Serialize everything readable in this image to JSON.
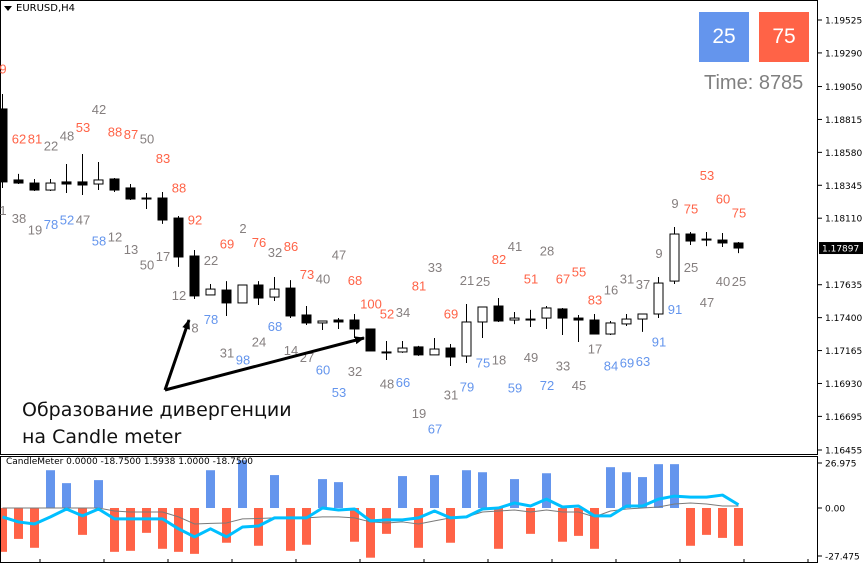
{
  "header": {
    "symbol": "EURUSD,H4"
  },
  "widget": {
    "blue_value": "25",
    "red_value": "75",
    "timer": "Time: 8785",
    "blue_color": "#6495ed",
    "red_color": "#ff6347"
  },
  "annotation": {
    "line1": "Образование дивергенции",
    "line2": "на Candle meter"
  },
  "indicator": {
    "title": "CandleMeter 0.0000 -18.7500 1.5938 1.0000 -18.7500"
  },
  "chart_data": [
    {
      "type": "candlestick",
      "title": "EURUSD,H4",
      "ylim": [
        1.16455,
        1.19525
      ],
      "y_ticks": [
        "1.19525",
        "1.19290",
        "1.19050",
        "1.18815",
        "1.18580",
        "1.18345",
        "1.18110",
        "1.17635",
        "1.17400",
        "1.17165",
        "1.16930",
        "1.16695",
        "1.16455"
      ],
      "y_tick_values": [
        1.19525,
        1.1929,
        1.1905,
        1.18815,
        1.1858,
        1.18345,
        1.1811,
        1.17635,
        1.174,
        1.17165,
        1.1693,
        1.16695,
        1.16455
      ],
      "current_price": "1.17897",
      "current_price_value": 1.17897,
      "ohlc_order": [
        "open",
        "high",
        "low",
        "close"
      ],
      "candles": [
        [
          1.1889,
          1.18997,
          1.18326,
          1.18369
        ],
        [
          1.18383,
          1.18426,
          1.18354,
          1.18361
        ],
        [
          1.18361,
          1.1839,
          1.18304,
          1.18311
        ],
        [
          1.18311,
          1.1839,
          1.18304,
          1.18361
        ],
        [
          1.18369,
          1.18497,
          1.1829,
          1.18354
        ],
        [
          1.18369,
          1.18568,
          1.18276,
          1.18347
        ],
        [
          1.18354,
          1.18511,
          1.18311,
          1.18383
        ],
        [
          1.1839,
          1.18397,
          1.18297,
          1.18311
        ],
        [
          1.18326,
          1.18354,
          1.1824,
          1.18247
        ],
        [
          1.18254,
          1.1829,
          1.18176,
          1.18247
        ],
        [
          1.18254,
          1.18297,
          1.18069,
          1.18097
        ],
        [
          1.18111,
          1.18126,
          1.17762,
          1.17833
        ],
        [
          1.1784,
          1.17883,
          1.17533,
          1.17555
        ],
        [
          1.17562,
          1.1764,
          1.17562,
          1.17604
        ],
        [
          1.17597,
          1.17661,
          1.17412,
          1.17505
        ],
        [
          1.17505,
          1.17633,
          1.17505,
          1.17633
        ],
        [
          1.17633,
          1.17661,
          1.1749,
          1.1754
        ],
        [
          1.17547,
          1.1769,
          1.17519,
          1.17604
        ],
        [
          1.17611,
          1.17668,
          1.17397,
          1.17412
        ],
        [
          1.17419,
          1.17483,
          1.17347,
          1.17362
        ],
        [
          1.17362,
          1.17376,
          1.17312,
          1.17376
        ],
        [
          1.17383,
          1.17397,
          1.17319,
          1.17369
        ],
        [
          1.17383,
          1.17426,
          1.17255,
          1.17319
        ],
        [
          1.17319,
          1.17319,
          1.17162,
          1.17162
        ],
        [
          1.17155,
          1.17233,
          1.17098,
          1.17148
        ],
        [
          1.17155,
          1.17233,
          1.17148,
          1.17183
        ],
        [
          1.17191,
          1.17198,
          1.17127,
          1.17134
        ],
        [
          1.17134,
          1.17255,
          1.17134,
          1.17176
        ],
        [
          1.17183,
          1.17212,
          1.17055,
          1.17119
        ],
        [
          1.17126,
          1.17497,
          1.17076,
          1.17369
        ],
        [
          1.17369,
          1.17476,
          1.17255,
          1.17476
        ],
        [
          1.17483,
          1.1754,
          1.17369,
          1.17376
        ],
        [
          1.17383,
          1.1744,
          1.17354,
          1.17397
        ],
        [
          1.17383,
          1.17455,
          1.17333,
          1.1739
        ],
        [
          1.17397,
          1.17483,
          1.17319,
          1.17469
        ],
        [
          1.17462,
          1.17469,
          1.17276,
          1.17397
        ],
        [
          1.17397,
          1.17419,
          1.17226,
          1.17383
        ],
        [
          1.17383,
          1.17426,
          1.17283,
          1.17283
        ],
        [
          1.17283,
          1.17376,
          1.17276,
          1.17362
        ],
        [
          1.17355,
          1.17426,
          1.1734,
          1.1739
        ],
        [
          1.1739,
          1.17426,
          1.17298,
          1.17426
        ],
        [
          1.17426,
          1.1769,
          1.17397,
          1.17647
        ],
        [
          1.17661,
          1.18047,
          1.1764,
          1.17997
        ],
        [
          1.17997,
          1.18011,
          1.17919,
          1.17947
        ],
        [
          1.17961,
          1.18011,
          1.17911,
          1.17954
        ],
        [
          1.17954,
          1.18004,
          1.17904,
          1.17933
        ],
        [
          1.17933,
          1.1794,
          1.17861,
          1.17897
        ]
      ],
      "label_colors": {
        "r": "#ff6347",
        "g": "#857f7f",
        "b": "#6495ed"
      },
      "labels": [
        {
          "i": 0,
          "t": "9",
          "c": "r",
          "p": 1.1918
        },
        {
          "i": 1,
          "t": "62",
          "c": "r",
          "p": 1.1868
        },
        {
          "i": 2,
          "t": "81",
          "c": "r",
          "p": 1.1868
        },
        {
          "i": 3,
          "t": "22",
          "c": "g",
          "p": 1.1863
        },
        {
          "i": 4,
          "t": "48",
          "c": "g",
          "p": 1.187
        },
        {
          "i": 5,
          "t": "53",
          "c": "r",
          "p": 1.1876
        },
        {
          "i": 6,
          "t": "42",
          "c": "g",
          "p": 1.1889
        },
        {
          "i": 7,
          "t": "88",
          "c": "r",
          "p": 1.1873
        },
        {
          "i": 8,
          "t": "87",
          "c": "r",
          "p": 1.1871
        },
        {
          "i": 9,
          "t": "50",
          "c": "g",
          "p": 1.1868
        },
        {
          "i": 10,
          "t": "83",
          "c": "r",
          "p": 1.1854
        },
        {
          "i": 11,
          "t": "88",
          "c": "r",
          "p": 1.1833
        },
        {
          "i": 12,
          "t": "92",
          "c": "r",
          "p": 1.181
        },
        {
          "i": 13,
          "t": "22",
          "c": "g",
          "p": 1.1781
        },
        {
          "i": 14,
          "t": "69",
          "c": "r",
          "p": 1.1793
        },
        {
          "i": 15,
          "t": "2",
          "c": "g",
          "p": 1.1804
        },
        {
          "i": 16,
          "t": "76",
          "c": "r",
          "p": 1.1794
        },
        {
          "i": 17,
          "t": "32",
          "c": "g",
          "p": 1.1787
        },
        {
          "i": 18,
          "t": "86",
          "c": "r",
          "p": 1.1791
        },
        {
          "i": 19,
          "t": "73",
          "c": "r",
          "p": 1.1771
        },
        {
          "i": 20,
          "t": "40",
          "c": "g",
          "p": 1.1768
        },
        {
          "i": 21,
          "t": "47",
          "c": "g",
          "p": 1.1785
        },
        {
          "i": 22,
          "t": "68",
          "c": "r",
          "p": 1.1767
        },
        {
          "i": 23,
          "t": "100",
          "c": "r",
          "p": 1.175
        },
        {
          "i": 24,
          "t": "52",
          "c": "r",
          "p": 1.1743
        },
        {
          "i": 25,
          "t": "34",
          "c": "g",
          "p": 1.1744
        },
        {
          "i": 26,
          "t": "81",
          "c": "r",
          "p": 1.1763
        },
        {
          "i": 27,
          "t": "33",
          "c": "g",
          "p": 1.1776
        },
        {
          "i": 28,
          "t": "69",
          "c": "r",
          "p": 1.1743
        },
        {
          "i": 29,
          "t": "21",
          "c": "g",
          "p": 1.1767
        },
        {
          "i": 30,
          "t": "25",
          "c": "g",
          "p": 1.1766
        },
        {
          "i": 31,
          "t": "82",
          "c": "r",
          "p": 1.1782
        },
        {
          "i": 32,
          "t": "41",
          "c": "g",
          "p": 1.1791
        },
        {
          "i": 33,
          "t": "51",
          "c": "r",
          "p": 1.1768
        },
        {
          "i": 34,
          "t": "28",
          "c": "g",
          "p": 1.1788
        },
        {
          "i": 35,
          "t": "67",
          "c": "r",
          "p": 1.1768
        },
        {
          "i": 36,
          "t": "55",
          "c": "r",
          "p": 1.1773
        },
        {
          "i": 37,
          "t": "83",
          "c": "r",
          "p": 1.1753
        },
        {
          "i": 38,
          "t": "16",
          "c": "g",
          "p": 1.176
        },
        {
          "i": 39,
          "t": "31",
          "c": "g",
          "p": 1.1768
        },
        {
          "i": 40,
          "t": "37",
          "c": "g",
          "p": 1.1764
        },
        {
          "i": 41,
          "t": "9",
          "c": "g",
          "p": 1.1786
        },
        {
          "i": 42,
          "t": "9",
          "c": "g",
          "p": 1.1822
        },
        {
          "i": 43,
          "t": "75",
          "c": "r",
          "p": 1.1818
        },
        {
          "i": 44,
          "t": "53",
          "c": "r",
          "p": 1.1842
        },
        {
          "i": 45,
          "t": "60",
          "c": "r",
          "p": 1.1825
        },
        {
          "i": 46,
          "t": "75",
          "c": "r",
          "p": 1.1815
        },
        {
          "i": 0,
          "t": "1",
          "c": "g",
          "p": 1.1817
        },
        {
          "i": 1,
          "t": "38",
          "c": "g",
          "p": 1.1811
        },
        {
          "i": 2,
          "t": "19",
          "c": "g",
          "p": 1.1803
        },
        {
          "i": 3,
          "t": "78",
          "c": "b",
          "p": 1.1807
        },
        {
          "i": 4,
          "t": "52",
          "c": "b",
          "p": 1.181
        },
        {
          "i": 5,
          "t": "47",
          "c": "g",
          "p": 1.181
        },
        {
          "i": 6,
          "t": "58",
          "c": "b",
          "p": 1.1795
        },
        {
          "i": 7,
          "t": "12",
          "c": "g",
          "p": 1.1798
        },
        {
          "i": 8,
          "t": "13",
          "c": "g",
          "p": 1.1789
        },
        {
          "i": 9,
          "t": "50",
          "c": "g",
          "p": 1.1778
        },
        {
          "i": 10,
          "t": "17",
          "c": "g",
          "p": 1.1784
        },
        {
          "i": 11,
          "t": "12",
          "c": "g",
          "p": 1.1756
        },
        {
          "i": 12,
          "t": "8",
          "c": "g",
          "p": 1.1733
        },
        {
          "i": 13,
          "t": "78",
          "c": "b",
          "p": 1.1739
        },
        {
          "i": 14,
          "t": "31",
          "c": "g",
          "p": 1.1715
        },
        {
          "i": 15,
          "t": "98",
          "c": "b",
          "p": 1.171
        },
        {
          "i": 16,
          "t": "24",
          "c": "g",
          "p": 1.1723
        },
        {
          "i": 17,
          "t": "68",
          "c": "b",
          "p": 1.1734
        },
        {
          "i": 18,
          "t": "14",
          "c": "g",
          "p": 1.1717
        },
        {
          "i": 19,
          "t": "27",
          "c": "g",
          "p": 1.1712
        },
        {
          "i": 20,
          "t": "60",
          "c": "b",
          "p": 1.1703
        },
        {
          "i": 21,
          "t": "53",
          "c": "b",
          "p": 1.1687
        },
        {
          "i": 22,
          "t": "32",
          "c": "g",
          "p": 1.1702
        },
        {
          "i": 24,
          "t": "48",
          "c": "g",
          "p": 1.1693
        },
        {
          "i": 25,
          "t": "66",
          "c": "b",
          "p": 1.1694
        },
        {
          "i": 26,
          "t": "19",
          "c": "g",
          "p": 1.1672
        },
        {
          "i": 27,
          "t": "67",
          "c": "b",
          "p": 1.1661
        },
        {
          "i": 28,
          "t": "31",
          "c": "g",
          "p": 1.1685
        },
        {
          "i": 29,
          "t": "79",
          "c": "b",
          "p": 1.1691
        },
        {
          "i": 30,
          "t": "75",
          "c": "b",
          "p": 1.1708
        },
        {
          "i": 31,
          "t": "18",
          "c": "g",
          "p": 1.171
        },
        {
          "i": 32,
          "t": "59",
          "c": "b",
          "p": 1.169
        },
        {
          "i": 33,
          "t": "49",
          "c": "g",
          "p": 1.1712
        },
        {
          "i": 34,
          "t": "72",
          "c": "b",
          "p": 1.1692
        },
        {
          "i": 35,
          "t": "33",
          "c": "g",
          "p": 1.1706
        },
        {
          "i": 36,
          "t": "45",
          "c": "g",
          "p": 1.1692
        },
        {
          "i": 37,
          "t": "17",
          "c": "g",
          "p": 1.1718
        },
        {
          "i": 38,
          "t": "84",
          "c": "b",
          "p": 1.1706
        },
        {
          "i": 39,
          "t": "69",
          "c": "b",
          "p": 1.1708
        },
        {
          "i": 40,
          "t": "63",
          "c": "b",
          "p": 1.1709
        },
        {
          "i": 41,
          "t": "91",
          "c": "b",
          "p": 1.1723
        },
        {
          "i": 42,
          "t": "91",
          "c": "b",
          "p": 1.1746
        },
        {
          "i": 43,
          "t": "25",
          "c": "g",
          "p": 1.1776
        },
        {
          "i": 44,
          "t": "47",
          "c": "g",
          "p": 1.1751
        },
        {
          "i": 45,
          "t": "40",
          "c": "g",
          "p": 1.1766
        },
        {
          "i": 46,
          "t": "25",
          "c": "g",
          "p": 1.1766
        }
      ]
    },
    {
      "type": "bar+line",
      "title": "CandleMeter",
      "ylim": [
        -27.475,
        26.975
      ],
      "y_ticks": [
        "26.975",
        "0.00",
        "-27.475"
      ],
      "y_tick_values": [
        26.975,
        0,
        -27.475
      ],
      "histogram_colors": {
        "up": "#6495ed",
        "down": "#ff6347"
      },
      "histogram": [
        -21.7,
        -15.3,
        -19.7,
        18.7,
        12.3,
        -13.3,
        13.8,
        -21.7,
        -21.2,
        -12.3,
        -20.2,
        -21.7,
        -22.7,
        18.7,
        -17.2,
        23.6,
        -18.7,
        16.3,
        -21.2,
        -18.2,
        14.3,
        12.8,
        -16.7,
        -24.6,
        -12.8,
        15.8,
        -19.7,
        16.3,
        -17.2,
        18.7,
        17.7,
        -20.2,
        14.3,
        -12.8,
        17.2,
        -16.7,
        -13.8,
        -20.2,
        20.2,
        17.7,
        15.3,
        21.7,
        21.7,
        -18.7,
        -13.3,
        -14.8,
        -18.75
      ],
      "series": [
        {
          "name": "signal",
          "color": "#00bfff",
          "values": [
            -4.4,
            -6.9,
            -7.9,
            -4.4,
            -0.5,
            -3.9,
            -0.5,
            -5.4,
            -5.4,
            -5.4,
            -5.4,
            -10.3,
            -14.3,
            -10.3,
            -14.3,
            -9.4,
            -8.9,
            -4.9,
            -4.9,
            -4.9,
            0,
            -1.0,
            -0.5,
            -6.4,
            -5.9,
            -5.9,
            -4.9,
            -1.5,
            -4.9,
            -4.4,
            -0.5,
            0,
            2.5,
            1.0,
            4.4,
            0.5,
            1.0,
            -3.9,
            -3.9,
            1.0,
            1.0,
            4.4,
            5.9,
            5.4,
            5.4,
            6.4,
            1.5938
          ]
        },
        {
          "name": "average",
          "color": "#7a7a7a",
          "values": [
            0,
            0,
            0,
            0,
            0,
            0,
            0,
            -1.5,
            -2,
            -2,
            -2,
            -4.4,
            -7.9,
            -7.6,
            -7.4,
            -5.4,
            -5.2,
            -4.9,
            -4.9,
            -4.9,
            -4.4,
            -4.4,
            -4.9,
            -6.9,
            -7.4,
            -6.9,
            -7.9,
            -6.4,
            -4.9,
            -4.4,
            -2.0,
            -1.5,
            -1.0,
            -2.0,
            -1.0,
            -2.0,
            -2.0,
            -4.4,
            -1.5,
            -0.5,
            0,
            0.5,
            2.0,
            2.5,
            2.0,
            1.0,
            1.0
          ]
        }
      ]
    }
  ]
}
